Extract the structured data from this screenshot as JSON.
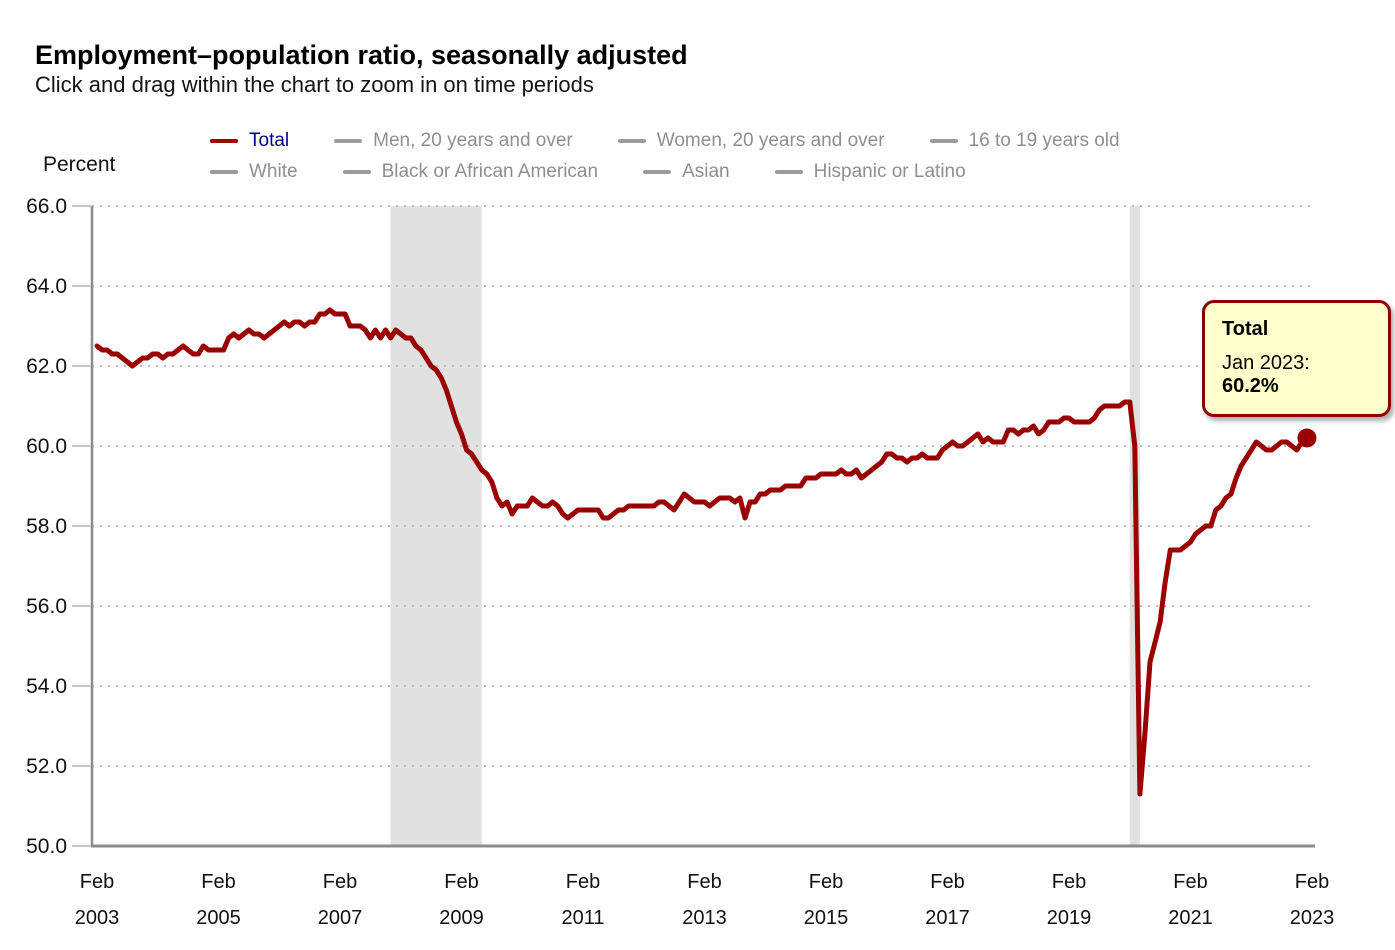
{
  "header": {
    "title": "Employment–population ratio, seasonally adjusted",
    "subtitle": "Click and drag within the chart to zoom in on time periods"
  },
  "legend": {
    "rows": [
      [
        {
          "label": "Total",
          "swatch_color": "#9a0000",
          "text_color": "#00008b",
          "active": true
        },
        {
          "label": "Men, 20 years and over",
          "swatch_color": "#9b9b9b",
          "text_color": "#8f8f8f",
          "active": false
        },
        {
          "label": "Women, 20 years and over",
          "swatch_color": "#9b9b9b",
          "text_color": "#8f8f8f",
          "active": false
        },
        {
          "label": "16 to 19 years old",
          "swatch_color": "#9b9b9b",
          "text_color": "#8f8f8f",
          "active": false
        }
      ],
      [
        {
          "label": "White",
          "swatch_color": "#9b9b9b",
          "text_color": "#8f8f8f",
          "active": false
        },
        {
          "label": "Black or African American",
          "swatch_color": "#9b9b9b",
          "text_color": "#8f8f8f",
          "active": false
        },
        {
          "label": "Asian",
          "swatch_color": "#9b9b9b",
          "text_color": "#8f8f8f",
          "active": false
        },
        {
          "label": "Hispanic or Latino",
          "swatch_color": "#9b9b9b",
          "text_color": "#8f8f8f",
          "active": false
        }
      ]
    ]
  },
  "tooltip": {
    "title": "Total",
    "period_label": "Jan 2023:",
    "value": "60.2%"
  },
  "chart_data": {
    "type": "line",
    "title": "Employment–population ratio, seasonally adjusted",
    "xlabel": "",
    "ylabel": "Percent",
    "ylim": [
      50,
      66
    ],
    "y_tick_labels": [
      "66.0",
      "64.0",
      "62.0",
      "60.0",
      "58.0",
      "56.0",
      "54.0",
      "52.0",
      "50.0"
    ],
    "grid": "dotted-horizontal",
    "legend_position": "top",
    "frequency": "monthly",
    "x_start": "Feb 2003",
    "x_end": "Jan 2023",
    "x_tick_month": "Feb",
    "x_tick_years": [
      "2003",
      "2005",
      "2007",
      "2009",
      "2011",
      "2013",
      "2015",
      "2017",
      "2019",
      "2021",
      "2023"
    ],
    "x_tick_interval_months": 24,
    "recession_bands": [
      {
        "start_month_index": 58,
        "end_month_index": 76
      },
      {
        "start_month_index": 204,
        "end_month_index": 206
      }
    ],
    "highlight_point": {
      "series": "Total",
      "month_index": 239,
      "period": "Jan 2023",
      "value": 60.2
    },
    "series": [
      {
        "name": "Total",
        "color": "#9a0000",
        "values": [
          62.5,
          62.4,
          62.4,
          62.3,
          62.3,
          62.2,
          62.1,
          62.0,
          62.1,
          62.2,
          62.2,
          62.3,
          62.3,
          62.2,
          62.3,
          62.3,
          62.4,
          62.5,
          62.4,
          62.3,
          62.3,
          62.5,
          62.4,
          62.4,
          62.4,
          62.4,
          62.7,
          62.8,
          62.7,
          62.8,
          62.9,
          62.8,
          62.8,
          62.7,
          62.8,
          62.9,
          63.0,
          63.1,
          63.0,
          63.1,
          63.1,
          63.0,
          63.1,
          63.1,
          63.3,
          63.3,
          63.4,
          63.3,
          63.3,
          63.3,
          63.0,
          63.0,
          63.0,
          62.9,
          62.7,
          62.9,
          62.7,
          62.9,
          62.7,
          62.9,
          62.8,
          62.7,
          62.7,
          62.5,
          62.4,
          62.2,
          62.0,
          61.9,
          61.7,
          61.4,
          61.0,
          60.6,
          60.3,
          59.9,
          59.8,
          59.6,
          59.4,
          59.3,
          59.1,
          58.7,
          58.5,
          58.6,
          58.3,
          58.5,
          58.5,
          58.5,
          58.7,
          58.6,
          58.5,
          58.5,
          58.6,
          58.5,
          58.3,
          58.2,
          58.3,
          58.4,
          58.4,
          58.4,
          58.4,
          58.4,
          58.2,
          58.2,
          58.3,
          58.4,
          58.4,
          58.5,
          58.5,
          58.5,
          58.5,
          58.5,
          58.5,
          58.6,
          58.6,
          58.5,
          58.4,
          58.6,
          58.8,
          58.7,
          58.6,
          58.6,
          58.6,
          58.5,
          58.6,
          58.7,
          58.7,
          58.7,
          58.6,
          58.7,
          58.2,
          58.6,
          58.6,
          58.8,
          58.8,
          58.9,
          58.9,
          58.9,
          59.0,
          59.0,
          59.0,
          59.0,
          59.2,
          59.2,
          59.2,
          59.3,
          59.3,
          59.3,
          59.3,
          59.4,
          59.3,
          59.3,
          59.4,
          59.2,
          59.3,
          59.4,
          59.5,
          59.6,
          59.8,
          59.8,
          59.7,
          59.7,
          59.6,
          59.7,
          59.7,
          59.8,
          59.7,
          59.7,
          59.7,
          59.9,
          60.0,
          60.1,
          60.0,
          60.0,
          60.1,
          60.2,
          60.3,
          60.1,
          60.2,
          60.1,
          60.1,
          60.1,
          60.4,
          60.4,
          60.3,
          60.4,
          60.4,
          60.5,
          60.3,
          60.4,
          60.6,
          60.6,
          60.6,
          60.7,
          60.7,
          60.6,
          60.6,
          60.6,
          60.6,
          60.7,
          60.9,
          61.0,
          61.0,
          61.0,
          61.0,
          61.1,
          61.1,
          60.0,
          51.3,
          52.8,
          54.6,
          55.1,
          55.6,
          56.6,
          57.4,
          57.4,
          57.4,
          57.5,
          57.6,
          57.8,
          57.9,
          58.0,
          58.0,
          58.4,
          58.5,
          58.7,
          58.8,
          59.2,
          59.5,
          59.7,
          59.9,
          60.1,
          60.0,
          59.9,
          59.9,
          60.0,
          60.1,
          60.1,
          60.0,
          59.9,
          60.1,
          60.2
        ]
      }
    ],
    "inactive_series_names": [
      "Men, 20 years and over",
      "Women, 20 years and over",
      "16 to 19 years old",
      "White",
      "Black or African American",
      "Asian",
      "Hispanic or Latino"
    ]
  },
  "style": {
    "line_color": "#9a0000",
    "recession_band_color": "#e1e1e1",
    "gridline_color": "#bcbcbc",
    "axis_color": "#8c8c8c",
    "tick_color": "#c2c9d6",
    "tooltip_bg": "#ffffcc",
    "tooltip_border": "#8b0000"
  }
}
